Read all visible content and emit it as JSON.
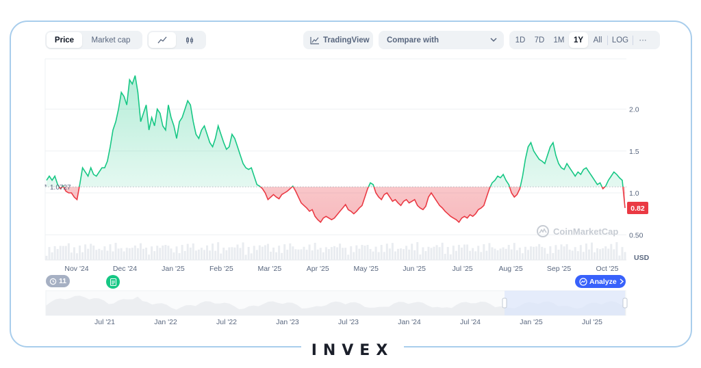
{
  "toolbar": {
    "price_tab": "Price",
    "marketcap_tab": "Market cap",
    "tradingview_label": "TradingView",
    "compare_label": "Compare with",
    "ranges": [
      "1D",
      "7D",
      "1M",
      "1Y",
      "All"
    ],
    "log_label": "LOG",
    "more_label": "···"
  },
  "badges": {
    "history_count": "11",
    "analyze_label": "Analyze"
  },
  "watermark": "CoinMarketCap",
  "brand": "INVEX",
  "colors": {
    "up": "#16c784",
    "down": "#ea3943",
    "frame": "#a8cdec",
    "analyze": "#3861fb"
  },
  "chart_data": {
    "type": "line",
    "baseline": 1.0727,
    "baseline_label": "1.0727",
    "current_value": 0.82,
    "current_label": "0.82",
    "ylim": [
      0.2,
      2.6
    ],
    "yticks": [
      0.5,
      1.0,
      1.5,
      2.0
    ],
    "ytick_labels": [
      "0.50",
      "1.0",
      "1.5",
      "2.0"
    ],
    "unit_label": "USD",
    "xlabels": [
      "Nov '24",
      "Dec '24",
      "Jan '25",
      "Feb '25",
      "Mar '25",
      "Apr '25",
      "May '25",
      "Jun '25",
      "Jul '25",
      "Aug '25",
      "Sep '25",
      "Oct '25"
    ],
    "values": [
      1.15,
      1.2,
      1.15,
      1.2,
      1.1,
      1.05,
      1.08,
      1.02,
      1.0,
      1.0,
      0.95,
      0.92,
      1.1,
      1.3,
      1.25,
      1.2,
      1.3,
      1.22,
      1.2,
      1.25,
      1.3,
      1.3,
      1.38,
      1.55,
      1.75,
      1.85,
      2.0,
      2.2,
      2.15,
      2.05,
      2.35,
      2.3,
      2.4,
      2.2,
      1.85,
      1.95,
      2.05,
      1.75,
      1.9,
      1.8,
      2.0,
      1.95,
      1.8,
      1.75,
      2.05,
      1.9,
      1.8,
      1.65,
      1.85,
      1.9,
      2.0,
      2.1,
      2.05,
      1.85,
      1.7,
      1.65,
      1.75,
      1.8,
      1.7,
      1.6,
      1.55,
      1.65,
      1.8,
      1.7,
      1.6,
      1.52,
      1.55,
      1.7,
      1.65,
      1.55,
      1.45,
      1.35,
      1.3,
      1.28,
      1.3,
      1.2,
      1.1,
      1.08,
      1.05,
      1.0,
      0.92,
      0.95,
      0.98,
      0.95,
      0.93,
      0.98,
      1.0,
      1.02,
      1.05,
      1.08,
      1.02,
      0.95,
      0.88,
      0.85,
      0.82,
      0.78,
      0.8,
      0.72,
      0.68,
      0.65,
      0.7,
      0.72,
      0.7,
      0.68,
      0.7,
      0.74,
      0.78,
      0.82,
      0.86,
      0.8,
      0.78,
      0.75,
      0.78,
      0.82,
      0.85,
      0.95,
      1.05,
      1.12,
      1.1,
      1.0,
      0.95,
      0.92,
      0.98,
      1.0,
      0.95,
      0.9,
      0.92,
      0.88,
      0.85,
      0.9,
      0.92,
      0.88,
      0.9,
      0.92,
      0.85,
      0.82,
      0.8,
      0.84,
      0.95,
      1.0,
      0.95,
      0.9,
      0.85,
      0.82,
      0.78,
      0.75,
      0.72,
      0.7,
      0.68,
      0.65,
      0.7,
      0.72,
      0.7,
      0.74,
      0.72,
      0.75,
      0.8,
      0.82,
      0.85,
      0.95,
      1.05,
      1.12,
      1.15,
      1.2,
      1.18,
      1.22,
      1.15,
      1.1,
      1.0,
      0.95,
      0.98,
      1.05,
      1.2,
      1.4,
      1.55,
      1.6,
      1.5,
      1.45,
      1.4,
      1.38,
      1.35,
      1.45,
      1.55,
      1.6,
      1.45,
      1.35,
      1.3,
      1.28,
      1.35,
      1.3,
      1.25,
      1.2,
      1.25,
      1.22,
      1.28,
      1.3,
      1.25,
      1.2,
      1.15,
      1.1,
      1.12,
      1.05,
      1.08,
      1.15,
      1.2,
      1.25,
      1.22,
      1.18,
      1.15,
      0.82
    ],
    "nav_labels": [
      "Jul '21",
      "Jan '22",
      "Jul '22",
      "Jan '23",
      "Jul '23",
      "Jan '24",
      "Jul '24",
      "Jan '25",
      "Jul '25"
    ]
  }
}
